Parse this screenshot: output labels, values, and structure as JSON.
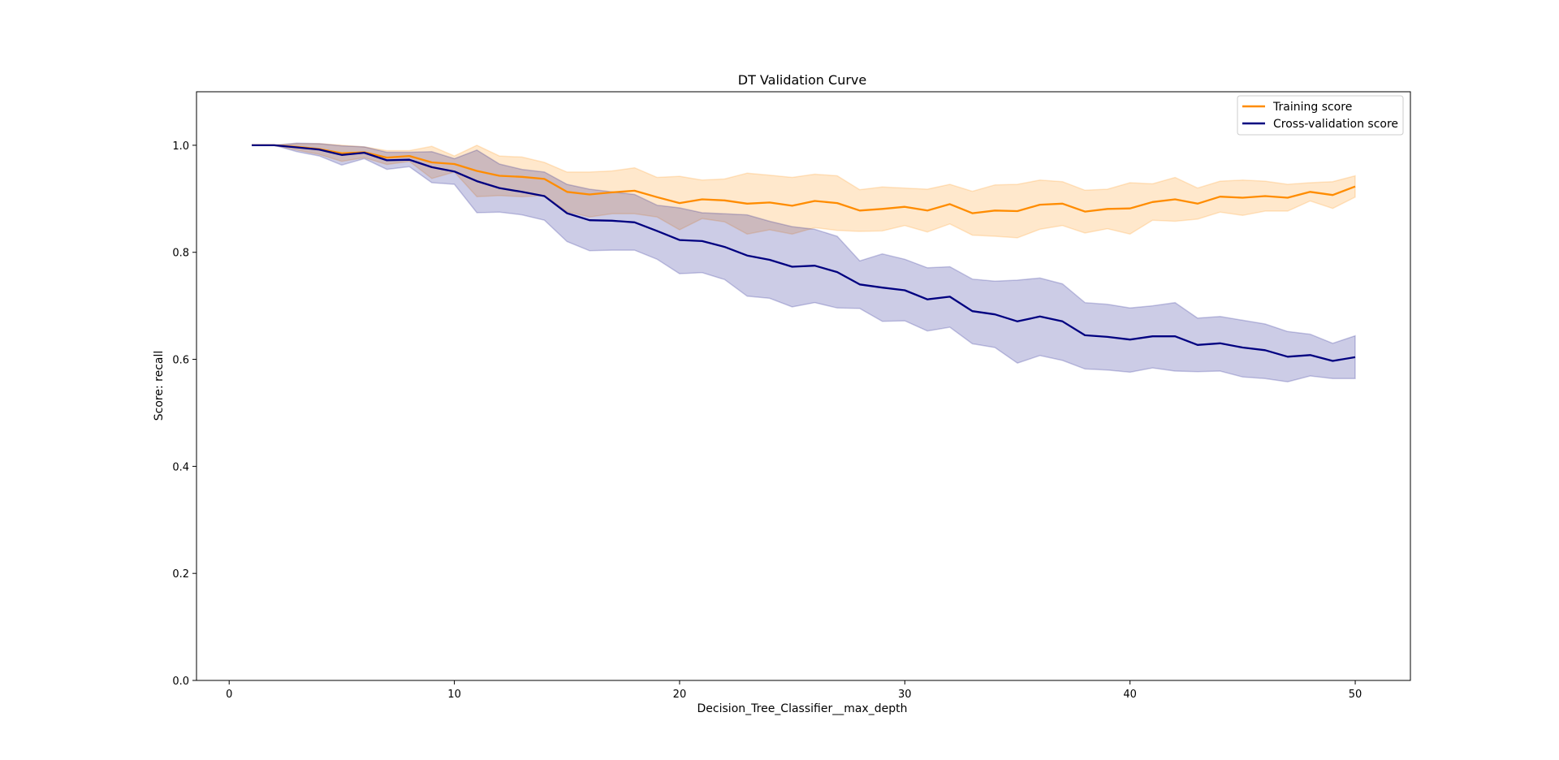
{
  "chart_data": {
    "type": "line",
    "title": "DT Validation Curve",
    "xlabel": "Decision_Tree_Classifier__max_depth",
    "ylabel": "Score: recall",
    "xlim": [
      -1.45,
      52.45
    ],
    "ylim": [
      0.0,
      1.1
    ],
    "xticks": [
      0,
      10,
      20,
      30,
      40,
      50
    ],
    "yticks": [
      0.0,
      0.2,
      0.4,
      0.6,
      0.8,
      1.0
    ],
    "ytick_labels": [
      "0.0",
      "0.2",
      "0.4",
      "0.6",
      "0.8",
      "1.0"
    ],
    "grid": false,
    "legend_position": "top-right",
    "x": [
      1,
      2,
      3,
      4,
      5,
      6,
      7,
      8,
      9,
      10,
      11,
      12,
      13,
      14,
      15,
      16,
      17,
      18,
      19,
      20,
      21,
      22,
      23,
      24,
      25,
      26,
      27,
      28,
      29,
      30,
      31,
      32,
      33,
      34,
      35,
      36,
      37,
      38,
      39,
      40,
      41,
      42,
      43,
      44,
      45,
      46,
      47,
      48,
      49,
      50
    ],
    "series": [
      {
        "name": "Training score",
        "color": "#ff8c00",
        "values": [
          1.0,
          1.0,
          0.997,
          0.993,
          0.985,
          0.987,
          0.977,
          0.98,
          0.968,
          0.965,
          0.952,
          0.943,
          0.941,
          0.937,
          0.913,
          0.908,
          0.912,
          0.915,
          0.903,
          0.892,
          0.899,
          0.897,
          0.891,
          0.893,
          0.887,
          0.896,
          0.892,
          0.878,
          0.881,
          0.885,
          0.878,
          0.89,
          0.873,
          0.878,
          0.877,
          0.889,
          0.891,
          0.876,
          0.881,
          0.882,
          0.894,
          0.899,
          0.891,
          0.904,
          0.902,
          0.905,
          0.902,
          0.913,
          0.907,
          0.923
        ],
        "upper": [
          1.0,
          1.0,
          1.003,
          1.003,
          1.0,
          0.997,
          0.99,
          0.99,
          0.998,
          0.98,
          1.0,
          0.98,
          0.978,
          0.968,
          0.95,
          0.95,
          0.952,
          0.958,
          0.94,
          0.942,
          0.935,
          0.937,
          0.948,
          0.944,
          0.94,
          0.946,
          0.943,
          0.917,
          0.922,
          0.92,
          0.918,
          0.927,
          0.914,
          0.926,
          0.927,
          0.935,
          0.932,
          0.916,
          0.918,
          0.93,
          0.928,
          0.94,
          0.92,
          0.933,
          0.935,
          0.933,
          0.927,
          0.93,
          0.932,
          0.943
        ],
        "lower": [
          1.0,
          1.0,
          0.991,
          0.983,
          0.97,
          0.977,
          0.964,
          0.97,
          0.938,
          0.95,
          0.904,
          0.906,
          0.904,
          0.906,
          0.876,
          0.866,
          0.872,
          0.872,
          0.866,
          0.842,
          0.863,
          0.857,
          0.834,
          0.842,
          0.834,
          0.846,
          0.841,
          0.839,
          0.84,
          0.85,
          0.838,
          0.853,
          0.832,
          0.83,
          0.827,
          0.843,
          0.85,
          0.836,
          0.844,
          0.834,
          0.86,
          0.858,
          0.862,
          0.875,
          0.869,
          0.877,
          0.877,
          0.896,
          0.882,
          0.903
        ]
      },
      {
        "name": "Cross-validation score",
        "color": "#000080",
        "values": [
          1.0,
          1.0,
          0.996,
          0.992,
          0.982,
          0.986,
          0.972,
          0.973,
          0.959,
          0.951,
          0.933,
          0.92,
          0.913,
          0.905,
          0.873,
          0.86,
          0.859,
          0.856,
          0.84,
          0.823,
          0.821,
          0.81,
          0.794,
          0.786,
          0.773,
          0.775,
          0.763,
          0.74,
          0.734,
          0.729,
          0.712,
          0.717,
          0.69,
          0.684,
          0.671,
          0.68,
          0.671,
          0.645,
          0.642,
          0.637,
          0.643,
          0.643,
          0.627,
          0.63,
          0.622,
          0.617,
          0.605,
          0.608,
          0.597,
          0.604
        ],
        "upper": [
          1.0,
          1.0,
          1.004,
          1.003,
          0.999,
          0.997,
          0.987,
          0.987,
          0.988,
          0.975,
          0.991,
          0.965,
          0.955,
          0.95,
          0.927,
          0.918,
          0.913,
          0.908,
          0.888,
          0.883,
          0.874,
          0.872,
          0.87,
          0.858,
          0.848,
          0.843,
          0.83,
          0.784,
          0.797,
          0.787,
          0.771,
          0.773,
          0.75,
          0.746,
          0.748,
          0.752,
          0.741,
          0.706,
          0.703,
          0.696,
          0.7,
          0.706,
          0.677,
          0.68,
          0.673,
          0.666,
          0.652,
          0.647,
          0.63,
          0.644
        ],
        "lower": [
          1.0,
          1.0,
          0.988,
          0.98,
          0.963,
          0.975,
          0.955,
          0.96,
          0.93,
          0.927,
          0.874,
          0.875,
          0.87,
          0.86,
          0.82,
          0.803,
          0.804,
          0.804,
          0.787,
          0.76,
          0.762,
          0.749,
          0.718,
          0.714,
          0.698,
          0.706,
          0.696,
          0.695,
          0.671,
          0.672,
          0.653,
          0.66,
          0.629,
          0.622,
          0.593,
          0.607,
          0.598,
          0.582,
          0.58,
          0.576,
          0.584,
          0.578,
          0.577,
          0.578,
          0.567,
          0.564,
          0.558,
          0.569,
          0.564,
          0.564
        ]
      }
    ]
  }
}
